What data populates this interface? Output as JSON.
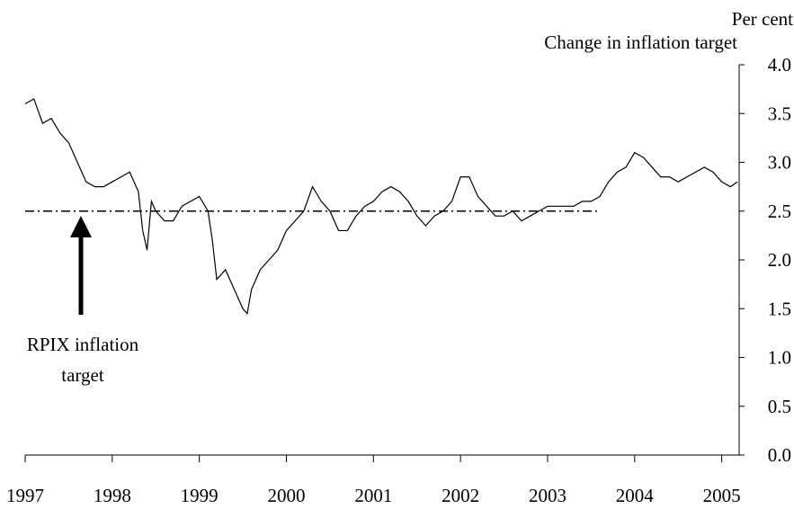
{
  "chart_data": {
    "type": "line",
    "title": "Change in inflation target",
    "y_label": "Per cent",
    "xlim": [
      1997,
      2005.2
    ],
    "xticks": [
      1997,
      1998,
      1999,
      2000,
      2001,
      2002,
      2003,
      2004,
      2005
    ],
    "ylim": [
      0,
      4
    ],
    "yticks": [
      {
        "value": 0,
        "label": "0.0"
      },
      {
        "value": 0.5,
        "label": "0.5"
      },
      {
        "value": 1,
        "label": "1.0"
      },
      {
        "value": 1.5,
        "label": "1.5"
      },
      {
        "value": 2,
        "label": "2.0"
      },
      {
        "value": 2.5,
        "label": "2.5"
      },
      {
        "value": 3,
        "label": "3.0"
      },
      {
        "value": 3.5,
        "label": "3.5"
      },
      {
        "value": 4,
        "label": "4.0"
      }
    ],
    "series": [
      {
        "color": "#000000",
        "style": "solid",
        "x": [
          1997.0,
          1997.1,
          1997.2,
          1997.3,
          1997.4,
          1997.5,
          1997.6,
          1997.7,
          1997.8,
          1997.9,
          1998.0,
          1998.1,
          1998.2,
          1998.3,
          1998.35,
          1998.4,
          1998.45,
          1998.5,
          1998.6,
          1998.7,
          1998.8,
          1998.9,
          1999.0,
          1999.1,
          1999.15,
          1999.2,
          1999.3,
          1999.4,
          1999.5,
          1999.55,
          1999.6,
          1999.7,
          1999.8,
          1999.9,
          2000.0,
          2000.1,
          2000.2,
          2000.3,
          2000.4,
          2000.5,
          2000.6,
          2000.7,
          2000.8,
          2000.9,
          2001.0,
          2001.1,
          2001.2,
          2001.3,
          2001.4,
          2001.5,
          2001.6,
          2001.7,
          2001.8,
          2001.9,
          2002.0,
          2002.1,
          2002.2,
          2002.3,
          2002.4,
          2002.5,
          2002.6,
          2002.7,
          2002.8,
          2002.9,
          2003.0,
          2003.1,
          2003.2,
          2003.3,
          2003.4,
          2003.5,
          2003.6,
          2003.7,
          2003.8,
          2003.9,
          2004.0,
          2004.1,
          2004.2,
          2004.3,
          2004.4,
          2004.5,
          2004.6,
          2004.7,
          2004.8,
          2004.9,
          2005.0,
          2005.1,
          2005.18
        ],
        "values": [
          3.6,
          3.65,
          3.4,
          3.45,
          3.3,
          3.2,
          3.0,
          2.8,
          2.75,
          2.75,
          2.8,
          2.85,
          2.9,
          2.7,
          2.3,
          2.1,
          2.6,
          2.5,
          2.4,
          2.4,
          2.55,
          2.6,
          2.65,
          2.5,
          2.2,
          1.8,
          1.9,
          1.7,
          1.5,
          1.45,
          1.7,
          1.9,
          2.0,
          2.1,
          2.3,
          2.4,
          2.5,
          2.75,
          2.6,
          2.5,
          2.3,
          2.3,
          2.45,
          2.55,
          2.6,
          2.7,
          2.75,
          2.7,
          2.6,
          2.45,
          2.35,
          2.45,
          2.5,
          2.6,
          2.85,
          2.85,
          2.65,
          2.55,
          2.45,
          2.45,
          2.5,
          2.4,
          2.45,
          2.5,
          2.55,
          2.55,
          2.55,
          2.55,
          2.6,
          2.6,
          2.65,
          2.8,
          2.9,
          2.95,
          3.1,
          3.05,
          2.95,
          2.85,
          2.85,
          2.8,
          2.85,
          2.9,
          2.95,
          2.9,
          2.8,
          2.75,
          2.8
        ]
      },
      {
        "name": "RPIX inflation target",
        "color": "#000000",
        "style": "dashdot",
        "x": [
          1997.0,
          2003.6
        ],
        "values": [
          2.5,
          2.5
        ]
      }
    ]
  }
}
